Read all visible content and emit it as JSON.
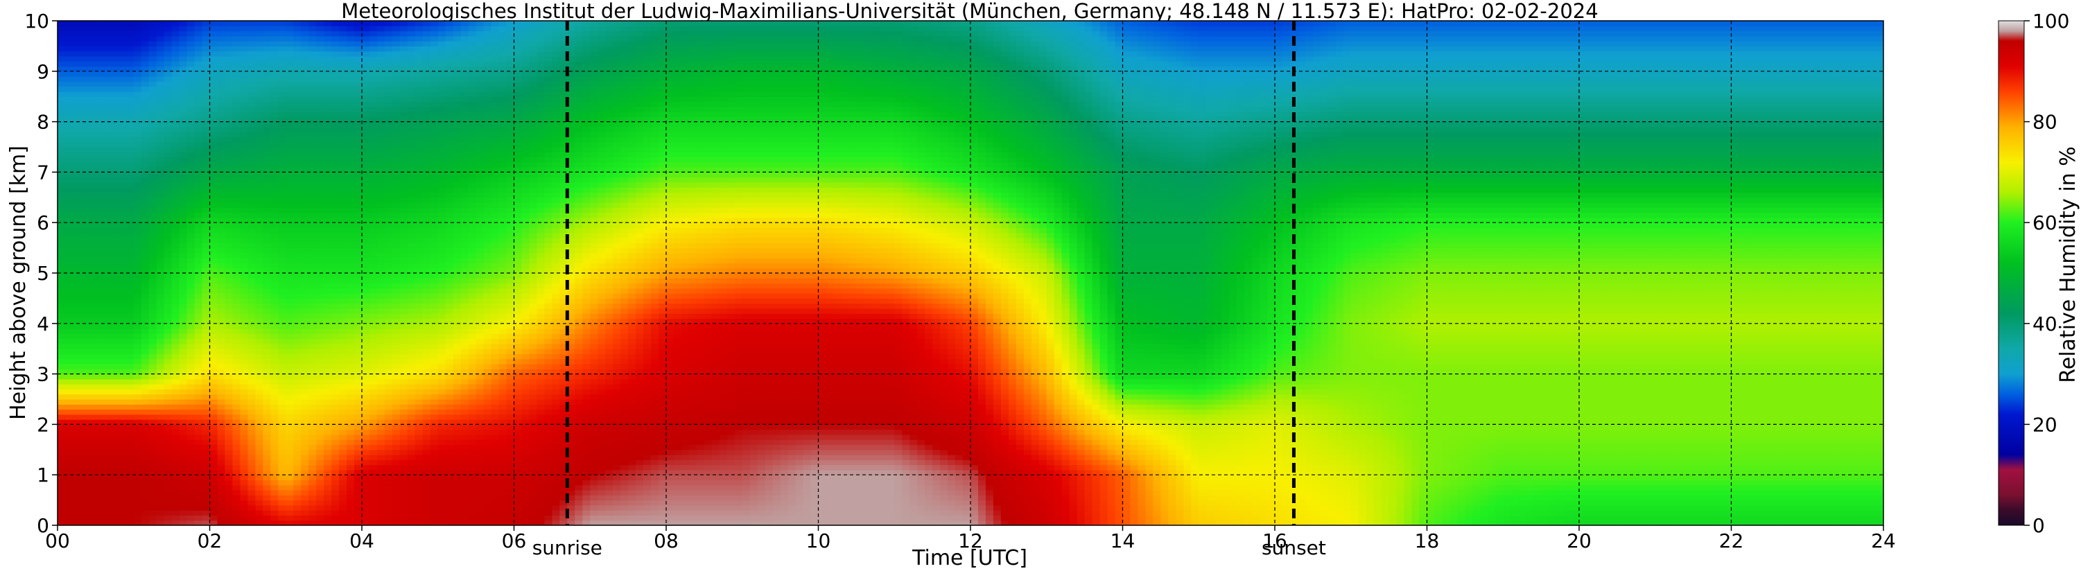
{
  "chart_data": {
    "type": "heatmap",
    "title": "Meteorologisches Institut der Ludwig-Maximilians-Universität (München, Germany; 48.148 N / 11.573 E):    HatPro: 02-02-2024",
    "xlabel": "Time [UTC]",
    "ylabel": "Height above ground [km]",
    "xlim": [
      0,
      24
    ],
    "ylim": [
      0,
      10
    ],
    "x_ticks": [
      "00",
      "02",
      "04",
      "06",
      "08",
      "10",
      "12",
      "14",
      "16",
      "18",
      "20",
      "22",
      "24"
    ],
    "y_ticks": [
      "0",
      "1",
      "2",
      "3",
      "4",
      "5",
      "6",
      "7",
      "8",
      "9",
      "10"
    ],
    "grid": true,
    "colorbar": {
      "label": "Relative Humidity in %",
      "range": [
        0,
        100
      ],
      "ticks": [
        "0",
        "20",
        "40",
        "60",
        "80",
        "100"
      ],
      "stops": [
        {
          "value": 0,
          "color": "#1a0a2a"
        },
        {
          "value": 3,
          "color": "#3a0a2a"
        },
        {
          "value": 6,
          "color": "#7a1030"
        },
        {
          "value": 11,
          "color": "#a01040"
        },
        {
          "value": 14,
          "color": "#0000a0"
        },
        {
          "value": 22,
          "color": "#0018d0"
        },
        {
          "value": 26,
          "color": "#0060e0"
        },
        {
          "value": 30,
          "color": "#10a0d0"
        },
        {
          "value": 35,
          "color": "#10a8a8"
        },
        {
          "value": 42,
          "color": "#009a60"
        },
        {
          "value": 52,
          "color": "#00c020"
        },
        {
          "value": 60,
          "color": "#20f020"
        },
        {
          "value": 66,
          "color": "#b0f000"
        },
        {
          "value": 72,
          "color": "#f8f000"
        },
        {
          "value": 79,
          "color": "#ffb000"
        },
        {
          "value": 86,
          "color": "#ff4000"
        },
        {
          "value": 91,
          "color": "#e00000"
        },
        {
          "value": 96,
          "color": "#c00000"
        },
        {
          "value": 98,
          "color": "#c0a0a0"
        },
        {
          "value": 100,
          "color": "#e0e0e0"
        }
      ]
    },
    "annotations": [
      {
        "label": "sunrise",
        "time": 6.7
      },
      {
        "label": "sunset",
        "time": 16.25
      }
    ],
    "time_grid": [
      0,
      1,
      2,
      3,
      4,
      5,
      6,
      7,
      8,
      9,
      10,
      11,
      12,
      13,
      14,
      15,
      16,
      17,
      18,
      19,
      20,
      21,
      22,
      23,
      24
    ],
    "rh_profiles": [
      {
        "h": 0.0,
        "rh": [
          96,
          96,
          97,
          91,
          92,
          94,
          95,
          98,
          98,
          98,
          98,
          98,
          98,
          94,
          85,
          76,
          74,
          72,
          62,
          58,
          56,
          56,
          56,
          56,
          56
        ]
      },
      {
        "h": 1.0,
        "rh": [
          96,
          96,
          94,
          78,
          92,
          94,
          94,
          96,
          97,
          97,
          98,
          98,
          97,
          92,
          84,
          72,
          72,
          70,
          64,
          62,
          62,
          62,
          62,
          62,
          62
        ]
      },
      {
        "h": 2.0,
        "rh": [
          92,
          92,
          88,
          75,
          80,
          88,
          90,
          94,
          95,
          96,
          96,
          96,
          94,
          84,
          72,
          68,
          70,
          66,
          64,
          64,
          64,
          64,
          64,
          64,
          64
        ]
      },
      {
        "h": 3.0,
        "rh": [
          62,
          62,
          74,
          68,
          70,
          74,
          84,
          88,
          92,
          94,
          94,
          94,
          90,
          78,
          56,
          56,
          62,
          64,
          64,
          64,
          64,
          64,
          64,
          64,
          64
        ]
      },
      {
        "h": 4.0,
        "rh": [
          54,
          54,
          66,
          62,
          64,
          66,
          72,
          82,
          90,
          92,
          92,
          92,
          86,
          72,
          52,
          50,
          58,
          64,
          66,
          66,
          66,
          66,
          66,
          66,
          66
        ]
      },
      {
        "h": 5.0,
        "rh": [
          50,
          50,
          62,
          58,
          58,
          60,
          64,
          74,
          80,
          82,
          82,
          80,
          76,
          68,
          48,
          48,
          56,
          62,
          64,
          64,
          64,
          64,
          64,
          64,
          64
        ]
      },
      {
        "h": 6.0,
        "rh": [
          46,
          46,
          56,
          54,
          54,
          56,
          60,
          66,
          72,
          74,
          74,
          72,
          68,
          60,
          46,
          46,
          52,
          58,
          60,
          60,
          60,
          60,
          60,
          60,
          60
        ]
      },
      {
        "h": 7.0,
        "rh": [
          40,
          40,
          46,
          48,
          48,
          50,
          54,
          58,
          62,
          62,
          62,
          62,
          58,
          52,
          44,
          42,
          46,
          48,
          48,
          48,
          48,
          48,
          48,
          48,
          48
        ]
      },
      {
        "h": 8.0,
        "rh": [
          34,
          34,
          38,
          42,
          42,
          44,
          46,
          52,
          56,
          56,
          56,
          56,
          52,
          46,
          38,
          36,
          38,
          40,
          40,
          40,
          40,
          40,
          40,
          40,
          40
        ]
      },
      {
        "h": 9.0,
        "rh": [
          26,
          26,
          32,
          34,
          34,
          36,
          38,
          44,
          48,
          50,
          50,
          48,
          46,
          40,
          32,
          30,
          30,
          32,
          32,
          32,
          32,
          32,
          32,
          32,
          32
        ]
      },
      {
        "h": 10.0,
        "rh": [
          18,
          18,
          24,
          24,
          20,
          24,
          30,
          36,
          40,
          40,
          40,
          40,
          38,
          32,
          26,
          24,
          24,
          26,
          26,
          26,
          26,
          26,
          26,
          26,
          26
        ]
      }
    ]
  }
}
